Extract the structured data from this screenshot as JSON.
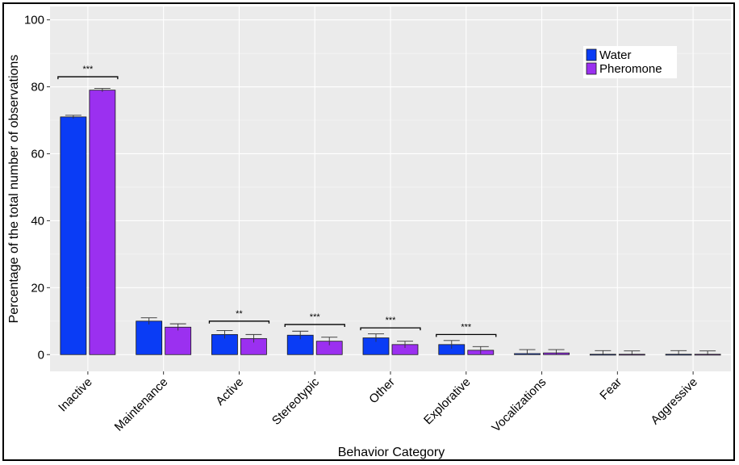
{
  "chart_data": {
    "type": "bar",
    "title": "",
    "xlabel": "Behavior Category",
    "ylabel": "Percentage of the total number of observations",
    "ylim": [
      0,
      100
    ],
    "yticks": [
      0,
      20,
      40,
      60,
      80,
      100
    ],
    "grid": true,
    "legend_position": "top-right",
    "categories": [
      "Inactive",
      "Maintenance",
      "Active",
      "Stereotypic",
      "Other",
      "Explorative",
      "Vocalizations",
      "Fear",
      "Aggressive"
    ],
    "series": [
      {
        "name": "Water",
        "color": "#0a3cf5",
        "values": [
          71,
          10,
          6,
          5.8,
          5,
          3,
          0.3,
          0.1,
          0.1
        ],
        "errors": [
          0.5,
          1,
          1.2,
          1.2,
          1.2,
          1.2,
          1.2,
          1.1,
          1.1
        ]
      },
      {
        "name": "Pheromone",
        "color": "#9b30f0",
        "values": [
          79,
          8.2,
          4.8,
          4,
          3,
          1.3,
          0.5,
          0.1,
          0.1
        ],
        "errors": [
          0.5,
          1,
          1.2,
          1.2,
          1,
          1.1,
          1,
          1,
          1
        ]
      }
    ],
    "annotations": [
      {
        "category": "Inactive",
        "text": "***",
        "y": 83
      },
      {
        "category": "Active",
        "text": "**",
        "y": 10
      },
      {
        "category": "Stereotypic",
        "text": "***",
        "y": 9
      },
      {
        "category": "Other",
        "text": "***",
        "y": 8
      },
      {
        "category": "Explorative",
        "text": "***",
        "y": 6
      }
    ]
  }
}
